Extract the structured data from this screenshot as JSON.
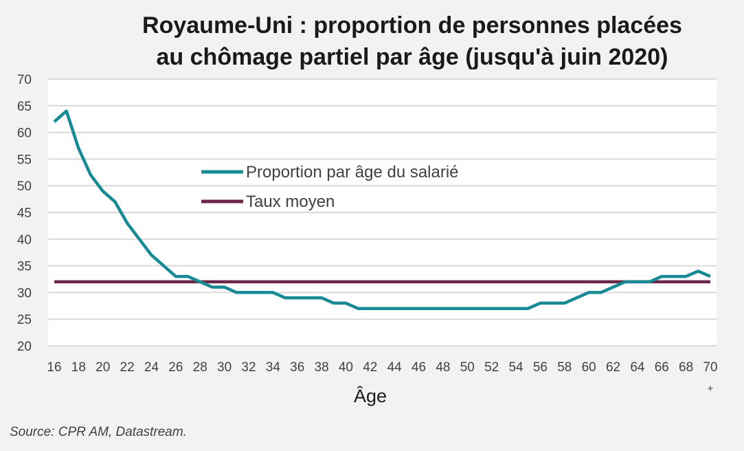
{
  "chart_data": {
    "type": "line",
    "title": [
      "Royaume-Uni : proportion de personnes placées",
      "au chômage partiel par âge (jusqu'à juin 2020)"
    ],
    "xlabel": "Âge",
    "ylabel": "",
    "x": [
      16,
      17,
      18,
      19,
      20,
      21,
      22,
      23,
      24,
      25,
      26,
      27,
      28,
      29,
      30,
      31,
      32,
      33,
      34,
      35,
      36,
      37,
      38,
      39,
      40,
      41,
      42,
      43,
      44,
      45,
      46,
      47,
      48,
      49,
      50,
      51,
      52,
      53,
      54,
      55,
      56,
      57,
      58,
      59,
      60,
      61,
      62,
      63,
      64,
      65,
      66,
      67,
      68,
      69,
      70
    ],
    "x_tick_labels": [
      "16",
      "18",
      "20",
      "22",
      "24",
      "26",
      "28",
      "30",
      "32",
      "34",
      "36",
      "38",
      "40",
      "42",
      "44",
      "46",
      "48",
      "50",
      "52",
      "54",
      "56",
      "58",
      "60",
      "62",
      "64",
      "66",
      "68",
      "70"
    ],
    "x_last_tick_suffix": "+",
    "ylim": [
      20,
      70
    ],
    "y_ticks": [
      20,
      25,
      30,
      35,
      40,
      45,
      50,
      55,
      60,
      65,
      70
    ],
    "grid": true,
    "legend_placement": "center-left",
    "series": [
      {
        "name": "Proportion par âge du salarié",
        "color": "#178a96",
        "values": [
          62,
          64,
          57,
          52,
          49,
          47,
          43,
          40,
          37,
          35,
          33,
          33,
          32,
          31,
          31,
          30,
          30,
          30,
          30,
          29,
          29,
          29,
          29,
          28,
          28,
          27,
          27,
          27,
          27,
          27,
          27,
          27,
          27,
          27,
          27,
          27,
          27,
          27,
          27,
          27,
          28,
          28,
          28,
          29,
          30,
          30,
          31,
          32,
          32,
          32,
          33,
          33,
          33,
          34,
          33
        ]
      },
      {
        "name": "Taux moyen",
        "color": "#6b2548",
        "values": [
          32,
          32,
          32,
          32,
          32,
          32,
          32,
          32,
          32,
          32,
          32,
          32,
          32,
          32,
          32,
          32,
          32,
          32,
          32,
          32,
          32,
          32,
          32,
          32,
          32,
          32,
          32,
          32,
          32,
          32,
          32,
          32,
          32,
          32,
          32,
          32,
          32,
          32,
          32,
          32,
          32,
          32,
          32,
          32,
          32,
          32,
          32,
          32,
          32,
          32,
          32,
          32,
          32,
          32,
          32
        ]
      }
    ]
  },
  "source": "Source: CPR AM, Datastream."
}
